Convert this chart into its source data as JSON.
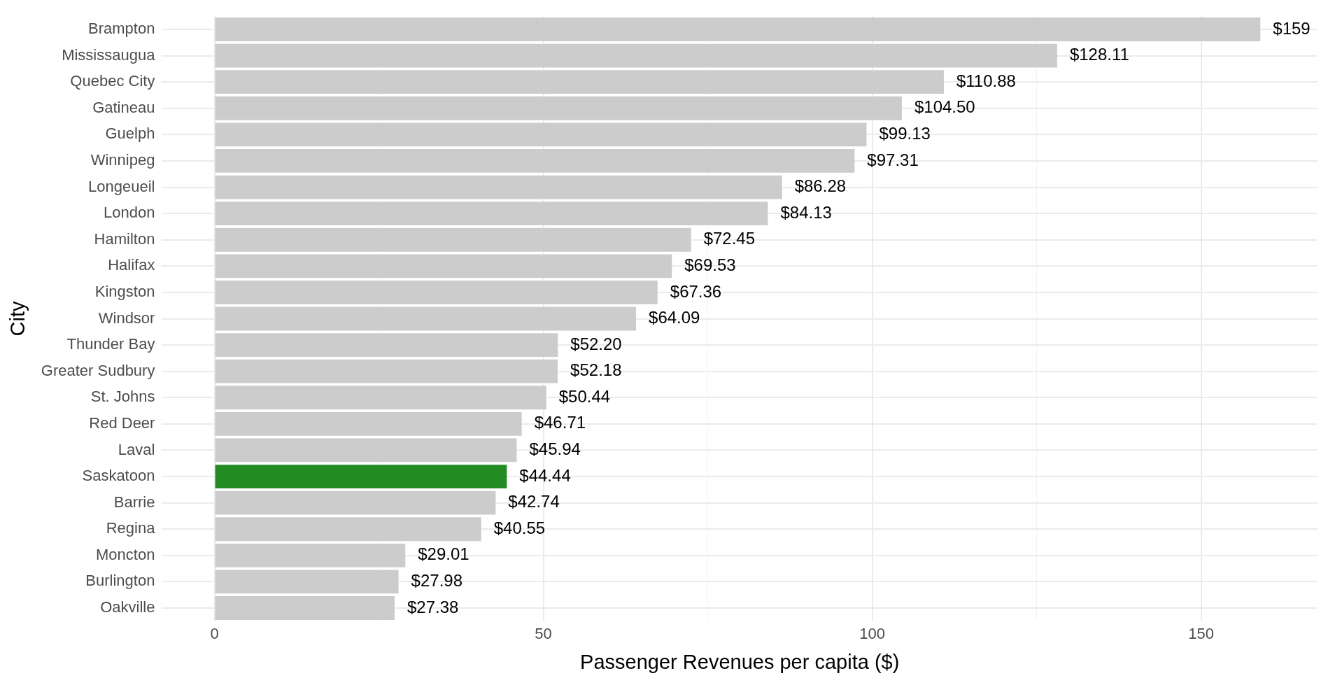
{
  "chart_data": {
    "type": "bar",
    "orientation": "horizontal",
    "xlabel": "Passenger Revenues per capita ($)",
    "ylabel": "City",
    "categories": [
      "Brampton",
      "Mississaugua",
      "Quebec City",
      "Gatineau",
      "Guelph",
      "Winnipeg",
      "Longeueil",
      "London",
      "Hamilton",
      "Halifax",
      "Kingston",
      "Windsor",
      "Thunder Bay",
      "Greater Sudbury",
      "St. Johns",
      "Red Deer",
      "Laval",
      "Saskatoon",
      "Barrie",
      "Regina",
      "Moncton",
      "Burlington",
      "Oakville"
    ],
    "values": [
      159,
      128.11,
      110.88,
      104.5,
      99.13,
      97.31,
      86.28,
      84.13,
      72.45,
      69.53,
      67.36,
      64.09,
      52.2,
      52.18,
      50.44,
      46.71,
      45.94,
      44.44,
      42.74,
      40.55,
      29.01,
      27.98,
      27.38
    ],
    "value_labels": [
      "$159",
      "$128.11",
      "$110.88",
      "$104.50",
      "$99.13",
      "$97.31",
      "$86.28",
      "$84.13",
      "$72.45",
      "$69.53",
      "$67.36",
      "$64.09",
      "$52.20",
      "$52.18",
      "$50.44",
      "$46.71",
      "$45.94",
      "$44.44",
      "$42.74",
      "$40.55",
      "$29.01",
      "$27.98",
      "$27.38"
    ],
    "colors": [
      "#cccccc",
      "#cccccc",
      "#cccccc",
      "#cccccc",
      "#cccccc",
      "#cccccc",
      "#cccccc",
      "#cccccc",
      "#cccccc",
      "#cccccc",
      "#cccccc",
      "#cccccc",
      "#cccccc",
      "#cccccc",
      "#cccccc",
      "#cccccc",
      "#cccccc",
      "#228b22",
      "#cccccc",
      "#cccccc",
      "#cccccc",
      "#cccccc",
      "#cccccc"
    ],
    "xlim": [
      -7.99,
      167.69
    ],
    "xticks": [
      0,
      {
        "value": 25,
        "label": null
      },
      50,
      {
        "value": 75,
        "label": null
      },
      100,
      {
        "value": 125,
        "label": null
      },
      150
    ],
    "grid": true,
    "legend": false
  }
}
